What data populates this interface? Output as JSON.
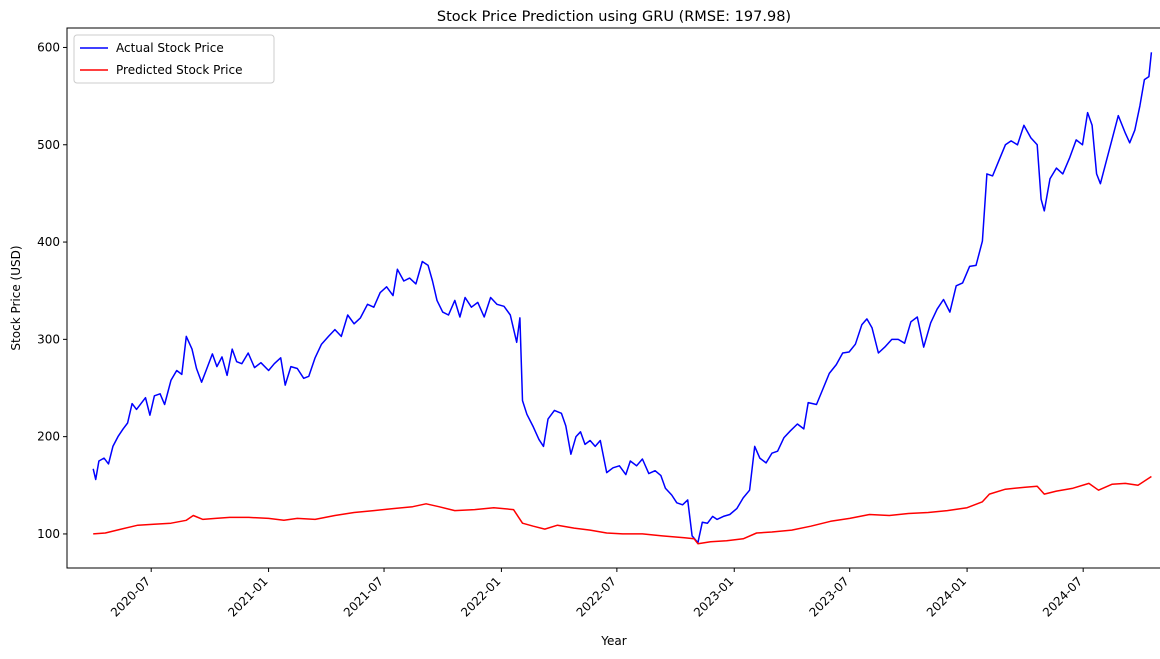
{
  "chart_data": {
    "type": "line",
    "title": "Stock Price Prediction using GRU (RMSE: 197.98)",
    "xlabel": "Year",
    "ylabel": "Stock Price (USD)",
    "xlim": [
      "2020-02-20",
      "2024-10-31"
    ],
    "ylim": [
      65,
      620
    ],
    "yticks": [
      100,
      200,
      300,
      400,
      500,
      600
    ],
    "xticks": [
      "2020-07",
      "2021-01",
      "2021-07",
      "2022-01",
      "2022-07",
      "2023-01",
      "2023-07",
      "2024-01",
      "2024-07"
    ],
    "grid": false,
    "legend_position": "top-left",
    "series": [
      {
        "name": "Actual Stock Price",
        "color": "#0000ff",
        "points": [
          [
            "2020-04-01",
            167
          ],
          [
            "2020-04-05",
            156
          ],
          [
            "2020-04-10",
            175
          ],
          [
            "2020-04-18",
            178
          ],
          [
            "2020-04-25",
            172
          ],
          [
            "2020-05-02",
            190
          ],
          [
            "2020-05-10",
            200
          ],
          [
            "2020-05-18",
            208
          ],
          [
            "2020-05-25",
            214
          ],
          [
            "2020-06-01",
            234
          ],
          [
            "2020-06-08",
            228
          ],
          [
            "2020-06-15",
            234
          ],
          [
            "2020-06-22",
            240
          ],
          [
            "2020-06-29",
            222
          ],
          [
            "2020-07-06",
            242
          ],
          [
            "2020-07-15",
            244
          ],
          [
            "2020-07-22",
            233
          ],
          [
            "2020-08-01",
            258
          ],
          [
            "2020-08-10",
            268
          ],
          [
            "2020-08-18",
            264
          ],
          [
            "2020-08-25",
            303
          ],
          [
            "2020-09-03",
            290
          ],
          [
            "2020-09-10",
            270
          ],
          [
            "2020-09-18",
            256
          ],
          [
            "2020-09-25",
            268
          ],
          [
            "2020-10-05",
            285
          ],
          [
            "2020-10-12",
            272
          ],
          [
            "2020-10-20",
            282
          ],
          [
            "2020-10-28",
            263
          ],
          [
            "2020-11-05",
            290
          ],
          [
            "2020-11-12",
            277
          ],
          [
            "2020-11-20",
            275
          ],
          [
            "2020-11-30",
            286
          ],
          [
            "2020-12-10",
            271
          ],
          [
            "2020-12-20",
            276
          ],
          [
            "2021-01-01",
            268
          ],
          [
            "2021-01-10",
            275
          ],
          [
            "2021-01-20",
            281
          ],
          [
            "2021-01-27",
            253
          ],
          [
            "2021-02-05",
            272
          ],
          [
            "2021-02-15",
            270
          ],
          [
            "2021-02-25",
            260
          ],
          [
            "2021-03-05",
            262
          ],
          [
            "2021-03-15",
            281
          ],
          [
            "2021-03-25",
            295
          ],
          [
            "2021-04-05",
            303
          ],
          [
            "2021-04-15",
            310
          ],
          [
            "2021-04-25",
            303
          ],
          [
            "2021-05-05",
            325
          ],
          [
            "2021-05-15",
            316
          ],
          [
            "2021-05-25",
            322
          ],
          [
            "2021-06-05",
            336
          ],
          [
            "2021-06-15",
            333
          ],
          [
            "2021-06-25",
            348
          ],
          [
            "2021-07-05",
            354
          ],
          [
            "2021-07-15",
            345
          ],
          [
            "2021-07-22",
            372
          ],
          [
            "2021-08-01",
            360
          ],
          [
            "2021-08-10",
            363
          ],
          [
            "2021-08-20",
            357
          ],
          [
            "2021-08-30",
            380
          ],
          [
            "2021-09-08",
            376
          ],
          [
            "2021-09-15",
            360
          ],
          [
            "2021-09-22",
            340
          ],
          [
            "2021-10-01",
            328
          ],
          [
            "2021-10-10",
            325
          ],
          [
            "2021-10-20",
            340
          ],
          [
            "2021-10-28",
            323
          ],
          [
            "2021-11-05",
            343
          ],
          [
            "2021-11-15",
            333
          ],
          [
            "2021-11-25",
            338
          ],
          [
            "2021-12-05",
            323
          ],
          [
            "2021-12-15",
            343
          ],
          [
            "2021-12-25",
            336
          ],
          [
            "2022-01-05",
            334
          ],
          [
            "2022-01-15",
            325
          ],
          [
            "2022-01-25",
            297
          ],
          [
            "2022-01-30",
            322
          ],
          [
            "2022-02-03",
            237
          ],
          [
            "2022-02-10",
            223
          ],
          [
            "2022-02-20",
            210
          ],
          [
            "2022-03-01",
            197
          ],
          [
            "2022-03-08",
            190
          ],
          [
            "2022-03-15",
            218
          ],
          [
            "2022-03-25",
            227
          ],
          [
            "2022-04-05",
            224
          ],
          [
            "2022-04-12",
            211
          ],
          [
            "2022-04-20",
            182
          ],
          [
            "2022-04-28",
            200
          ],
          [
            "2022-05-05",
            205
          ],
          [
            "2022-05-12",
            192
          ],
          [
            "2022-05-20",
            196
          ],
          [
            "2022-05-28",
            190
          ],
          [
            "2022-06-05",
            196
          ],
          [
            "2022-06-15",
            163
          ],
          [
            "2022-06-25",
            168
          ],
          [
            "2022-07-05",
            170
          ],
          [
            "2022-07-15",
            161
          ],
          [
            "2022-07-22",
            175
          ],
          [
            "2022-08-01",
            170
          ],
          [
            "2022-08-10",
            177
          ],
          [
            "2022-08-20",
            162
          ],
          [
            "2022-08-30",
            165
          ],
          [
            "2022-09-08",
            160
          ],
          [
            "2022-09-15",
            147
          ],
          [
            "2022-09-25",
            140
          ],
          [
            "2022-10-03",
            132
          ],
          [
            "2022-10-12",
            130
          ],
          [
            "2022-10-20",
            135
          ],
          [
            "2022-10-27",
            98
          ],
          [
            "2022-11-05",
            91
          ],
          [
            "2022-11-12",
            112
          ],
          [
            "2022-11-20",
            111
          ],
          [
            "2022-11-28",
            118
          ],
          [
            "2022-12-05",
            115
          ],
          [
            "2022-12-15",
            118
          ],
          [
            "2022-12-25",
            120
          ],
          [
            "2023-01-05",
            126
          ],
          [
            "2023-01-15",
            137
          ],
          [
            "2023-01-25",
            145
          ],
          [
            "2023-02-02",
            190
          ],
          [
            "2023-02-10",
            178
          ],
          [
            "2023-02-20",
            173
          ],
          [
            "2023-03-01",
            183
          ],
          [
            "2023-03-10",
            185
          ],
          [
            "2023-03-20",
            199
          ],
          [
            "2023-03-30",
            206
          ],
          [
            "2023-04-10",
            213
          ],
          [
            "2023-04-20",
            208
          ],
          [
            "2023-04-27",
            235
          ],
          [
            "2023-05-10",
            233
          ],
          [
            "2023-05-20",
            249
          ],
          [
            "2023-05-30",
            265
          ],
          [
            "2023-06-10",
            274
          ],
          [
            "2023-06-20",
            286
          ],
          [
            "2023-06-30",
            287
          ],
          [
            "2023-07-10",
            295
          ],
          [
            "2023-07-20",
            315
          ],
          [
            "2023-07-28",
            321
          ],
          [
            "2023-08-05",
            312
          ],
          [
            "2023-08-15",
            286
          ],
          [
            "2023-08-25",
            292
          ],
          [
            "2023-09-05",
            300
          ],
          [
            "2023-09-15",
            300
          ],
          [
            "2023-09-25",
            296
          ],
          [
            "2023-10-05",
            318
          ],
          [
            "2023-10-15",
            323
          ],
          [
            "2023-10-25",
            292
          ],
          [
            "2023-11-05",
            317
          ],
          [
            "2023-11-15",
            331
          ],
          [
            "2023-11-25",
            341
          ],
          [
            "2023-12-05",
            328
          ],
          [
            "2023-12-15",
            355
          ],
          [
            "2023-12-25",
            358
          ],
          [
            "2024-01-05",
            375
          ],
          [
            "2024-01-15",
            376
          ],
          [
            "2024-01-25",
            401
          ],
          [
            "2024-02-01",
            470
          ],
          [
            "2024-02-10",
            468
          ],
          [
            "2024-02-20",
            484
          ],
          [
            "2024-03-01",
            500
          ],
          [
            "2024-03-10",
            504
          ],
          [
            "2024-03-20",
            500
          ],
          [
            "2024-03-30",
            520
          ],
          [
            "2024-04-10",
            507
          ],
          [
            "2024-04-20",
            500
          ],
          [
            "2024-04-26",
            444
          ],
          [
            "2024-05-01",
            432
          ],
          [
            "2024-05-10",
            465
          ],
          [
            "2024-05-20",
            476
          ],
          [
            "2024-05-30",
            470
          ],
          [
            "2024-06-10",
            487
          ],
          [
            "2024-06-20",
            505
          ],
          [
            "2024-06-30",
            500
          ],
          [
            "2024-07-08",
            533
          ],
          [
            "2024-07-15",
            520
          ],
          [
            "2024-07-22",
            470
          ],
          [
            "2024-07-28",
            460
          ],
          [
            "2024-08-05",
            480
          ],
          [
            "2024-08-15",
            505
          ],
          [
            "2024-08-25",
            530
          ],
          [
            "2024-09-05",
            512
          ],
          [
            "2024-09-12",
            502
          ],
          [
            "2024-09-20",
            515
          ],
          [
            "2024-09-28",
            540
          ],
          [
            "2024-10-05",
            567
          ],
          [
            "2024-10-12",
            570
          ],
          [
            "2024-10-16",
            595
          ]
        ]
      },
      {
        "name": "Predicted Stock Price",
        "color": "#ff0000",
        "points": [
          [
            "2020-04-01",
            100
          ],
          [
            "2020-04-20",
            101
          ],
          [
            "2020-05-15",
            105
          ],
          [
            "2020-06-10",
            109
          ],
          [
            "2020-07-05",
            110
          ],
          [
            "2020-08-01",
            111
          ],
          [
            "2020-08-25",
            114
          ],
          [
            "2020-09-05",
            119
          ],
          [
            "2020-09-20",
            115
          ],
          [
            "2020-10-10",
            116
          ],
          [
            "2020-11-01",
            117
          ],
          [
            "2020-12-01",
            117
          ],
          [
            "2021-01-01",
            116
          ],
          [
            "2021-01-25",
            114
          ],
          [
            "2021-02-15",
            116
          ],
          [
            "2021-03-15",
            115
          ],
          [
            "2021-04-15",
            119
          ],
          [
            "2021-05-15",
            122
          ],
          [
            "2021-06-15",
            124
          ],
          [
            "2021-07-15",
            126
          ],
          [
            "2021-08-15",
            128
          ],
          [
            "2021-09-05",
            131
          ],
          [
            "2021-09-25",
            128
          ],
          [
            "2021-10-20",
            124
          ],
          [
            "2021-11-20",
            125
          ],
          [
            "2021-12-20",
            127
          ],
          [
            "2022-01-20",
            125
          ],
          [
            "2022-02-03",
            111
          ],
          [
            "2022-02-20",
            108
          ],
          [
            "2022-03-10",
            105
          ],
          [
            "2022-03-30",
            109
          ],
          [
            "2022-04-25",
            106
          ],
          [
            "2022-05-20",
            104
          ],
          [
            "2022-06-15",
            101
          ],
          [
            "2022-07-10",
            100
          ],
          [
            "2022-08-10",
            100
          ],
          [
            "2022-09-10",
            98
          ],
          [
            "2022-10-15",
            96
          ],
          [
            "2022-10-30",
            95
          ],
          [
            "2022-11-05",
            90
          ],
          [
            "2022-11-25",
            92
          ],
          [
            "2022-12-20",
            93
          ],
          [
            "2023-01-15",
            95
          ],
          [
            "2023-02-05",
            101
          ],
          [
            "2023-03-01",
            102
          ],
          [
            "2023-04-01",
            104
          ],
          [
            "2023-05-01",
            108
          ],
          [
            "2023-06-01",
            113
          ],
          [
            "2023-07-01",
            116
          ],
          [
            "2023-08-01",
            120
          ],
          [
            "2023-09-01",
            119
          ],
          [
            "2023-10-01",
            121
          ],
          [
            "2023-11-01",
            122
          ],
          [
            "2023-12-01",
            124
          ],
          [
            "2024-01-01",
            127
          ],
          [
            "2024-01-25",
            133
          ],
          [
            "2024-02-05",
            141
          ],
          [
            "2024-03-01",
            146
          ],
          [
            "2024-04-01",
            148
          ],
          [
            "2024-04-20",
            149
          ],
          [
            "2024-05-01",
            141
          ],
          [
            "2024-05-20",
            144
          ],
          [
            "2024-06-15",
            147
          ],
          [
            "2024-07-10",
            152
          ],
          [
            "2024-07-25",
            145
          ],
          [
            "2024-08-15",
            151
          ],
          [
            "2024-09-05",
            152
          ],
          [
            "2024-09-25",
            150
          ],
          [
            "2024-10-16",
            159
          ]
        ]
      }
    ]
  }
}
